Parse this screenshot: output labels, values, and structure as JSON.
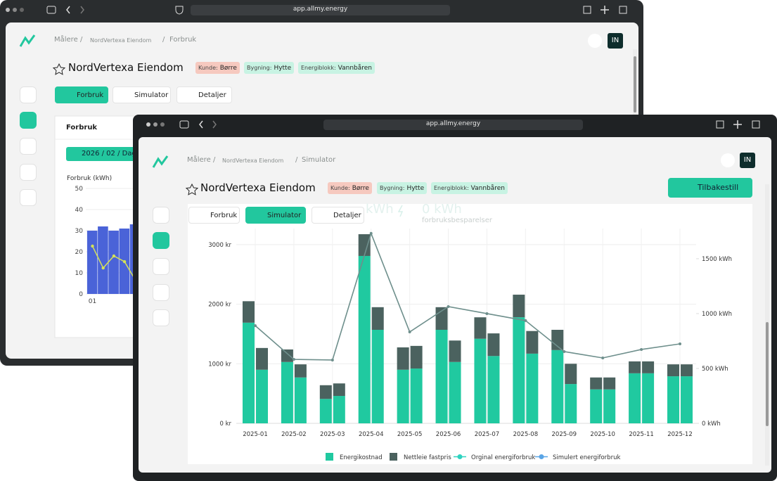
{
  "back_window": {
    "url": "app.allmy.energy",
    "breadcrumb": [
      "Målere",
      "NordVertexa Eiendom",
      "Forbruk"
    ],
    "separator": "/",
    "avatar": "IN",
    "title": "NordVertexa Eiendom",
    "tags": [
      {
        "label": "Kunde:",
        "value": "Børre"
      },
      {
        "label": "Bygning:",
        "value": "Hytte"
      },
      {
        "label": "Energiblokk:",
        "value": "Vannbåren"
      }
    ],
    "tabs": [
      "Forbruk",
      "Simulator",
      "Detaljer"
    ],
    "card_title": "Forbruk",
    "date_button": "2026 / 02 / Dag",
    "chart_data": {
      "type": "bar_line",
      "y_label": "Forbruk (kWh)",
      "categories": [
        "01",
        null,
        null,
        null,
        null
      ],
      "series": [
        {
          "type": "bar",
          "color": "#4a63d8",
          "values": [
            30,
            32,
            30,
            31,
            33
          ]
        },
        {
          "type": "line",
          "color": "#d4e157",
          "values": [
            22.7,
            12.3,
            18,
            15.3,
            6.7
          ]
        }
      ],
      "ylim": [
        0,
        50
      ],
      "yticks": [
        0,
        10,
        20,
        30,
        40,
        50
      ],
      "grid": true
    }
  },
  "front_window": {
    "url": "app.allmy.energy",
    "breadcrumb": [
      "Målere",
      "NordVertexa Eiendom",
      "Simulator"
    ],
    "separator": "/",
    "avatar": "IN",
    "title": "NordVertexa Eiendom",
    "tags": [
      {
        "label": "Kunde:",
        "value": "Børre"
      },
      {
        "label": "Bygning:",
        "value": "Hytte"
      },
      {
        "label": "Energiblokk:",
        "value": "Vannbåren"
      }
    ],
    "reset_button": "Tilbakestill",
    "tabs": [
      "Forbruk",
      "Simulator",
      "Detaljer"
    ],
    "ghost_texts": [
      "kWh",
      "0 kWh",
      "forbruksbesparelser"
    ],
    "chart_data": {
      "type": "stacked_bar_line",
      "categories": [
        "2025-01",
        "2025-02",
        "2025-03",
        "2025-04",
        "2025-05",
        "2025-06",
        "2025-07",
        "2025-08",
        "2025-09",
        "2025-10",
        "2025-11",
        "2025-12"
      ],
      "series": [
        {
          "name": "Energikostnad",
          "type": "bar",
          "color": "#20c9a0",
          "values": [
            1690,
            1030,
            410,
            2810,
            900,
            1570,
            1420,
            1780,
            1230,
            570,
            840,
            790
          ],
          "simulated_values": [
            900,
            770,
            460,
            1570,
            920,
            1030,
            1130,
            1170,
            660,
            570,
            840,
            790
          ]
        },
        {
          "name": "Nettleie fastpris",
          "type": "bar",
          "color": "#4b625f",
          "values": [
            360,
            210,
            230,
            365,
            375,
            380,
            360,
            380,
            340,
            200,
            200,
            200
          ],
          "simulated_values": [
            365,
            220,
            210,
            380,
            380,
            360,
            380,
            380,
            340,
            200,
            200,
            200
          ]
        },
        {
          "name": "Orginal energiforbruk",
          "type": "line",
          "color": "#2fd3c0",
          "axis": "y2"
        },
        {
          "name": "Simulert energiforbruk",
          "type": "line",
          "color": "#5aa5e6",
          "line_color": "#6e8f8c",
          "axis": "y2",
          "values": [
            890,
            583,
            577,
            1731,
            833,
            1064,
            1000,
            936,
            654,
            596,
            673,
            724
          ]
        }
      ],
      "ylim": [
        0,
        3270
      ],
      "yticks": [
        {
          "value": 0,
          "label": "0 kr"
        },
        {
          "value": 1000,
          "label": "1000 kr"
        },
        {
          "value": 2000,
          "label": "2000 kr"
        },
        {
          "value": 3000,
          "label": "3000 kr"
        }
      ],
      "y2lim": [
        0,
        1775
      ],
      "y2ticks": [
        {
          "value": 0,
          "label": "0 kWh"
        },
        {
          "value": 500,
          "label": "500 kWh"
        },
        {
          "value": 1000,
          "label": "1000 kWh"
        },
        {
          "value": 1500,
          "label": "1500 kWh"
        }
      ],
      "grid": true
    }
  }
}
